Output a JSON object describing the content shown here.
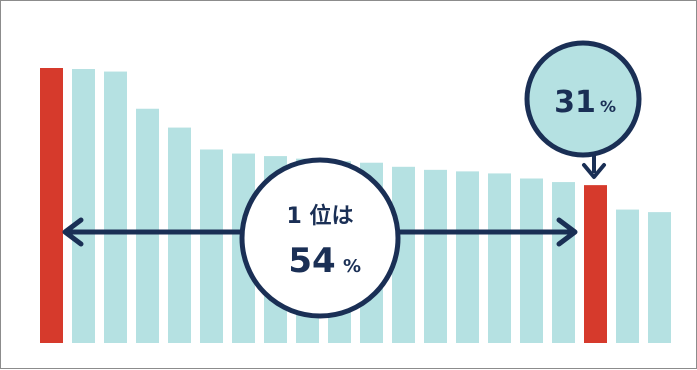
{
  "chart_data": {
    "type": "bar",
    "values": [
      54,
      53.8,
      53.3,
      46,
      42.3,
      38,
      37.2,
      36.7,
      36.2,
      35.7,
      35.4,
      34.6,
      34,
      33.7,
      33.3,
      32.3,
      31.6,
      31,
      26.2,
      25.7
    ],
    "highlighted_indices": [
      0,
      17
    ],
    "ylim": [
      0,
      55
    ],
    "colors": {
      "highlight": "#d63a2c",
      "normal": "#b5e1e2",
      "ink": "#1a2f55",
      "bubble_fill": "#ffffff",
      "small_bubble_fill": "#b5e1e2"
    },
    "annotations": {
      "main": {
        "line1": "1 位は",
        "value": "54",
        "unit": "%"
      },
      "small": {
        "value": "31",
        "unit": "%"
      }
    }
  }
}
